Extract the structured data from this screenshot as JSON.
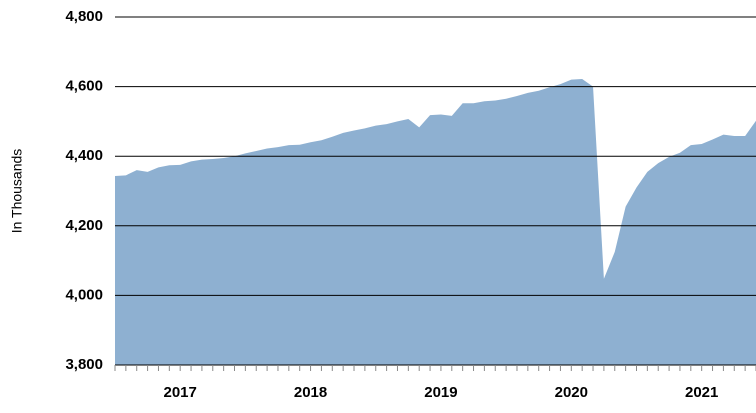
{
  "chart_data": {
    "type": "area",
    "ylabel": "In Thousands",
    "categories": [
      null,
      null,
      null,
      null,
      null,
      null,
      "2017",
      null,
      null,
      null,
      null,
      null,
      null,
      null,
      null,
      null,
      null,
      null,
      "2018",
      null,
      null,
      null,
      null,
      null,
      null,
      null,
      null,
      null,
      null,
      null,
      "2019",
      null,
      null,
      null,
      null,
      null,
      null,
      null,
      null,
      null,
      null,
      null,
      "2020",
      null,
      null,
      null,
      null,
      null,
      null,
      null,
      null,
      null,
      null,
      null,
      "2021",
      null,
      null,
      null,
      null,
      null
    ],
    "values": [
      4343,
      4345,
      4360,
      4355,
      4368,
      4374,
      4375,
      4385,
      4390,
      4392,
      4395,
      4400,
      4408,
      4415,
      4422,
      4426,
      4432,
      4433,
      4440,
      4446,
      4456,
      4467,
      4474,
      4480,
      4488,
      4492,
      4500,
      4507,
      4483,
      4518,
      4520,
      4516,
      4552,
      4552,
      4558,
      4560,
      4565,
      4573,
      4582,
      4588,
      4598,
      4607,
      4620,
      4622,
      4600,
      4048,
      4125,
      4255,
      4310,
      4355,
      4380,
      4398,
      4410,
      4432,
      4435,
      4448,
      4462,
      4458,
      4458,
      4502
    ],
    "color": "#8eb0d1",
    "ylim": [
      3800,
      4800
    ],
    "yticks": [
      {
        "value": 3800,
        "label": "3,800"
      },
      {
        "value": 4000,
        "label": "4,000"
      },
      {
        "value": 4200,
        "label": "4,200"
      },
      {
        "value": 4400,
        "label": "4,400"
      },
      {
        "value": 4600,
        "label": "4,600"
      },
      {
        "value": 4800,
        "label": "4,800"
      }
    ],
    "grid": true
  }
}
